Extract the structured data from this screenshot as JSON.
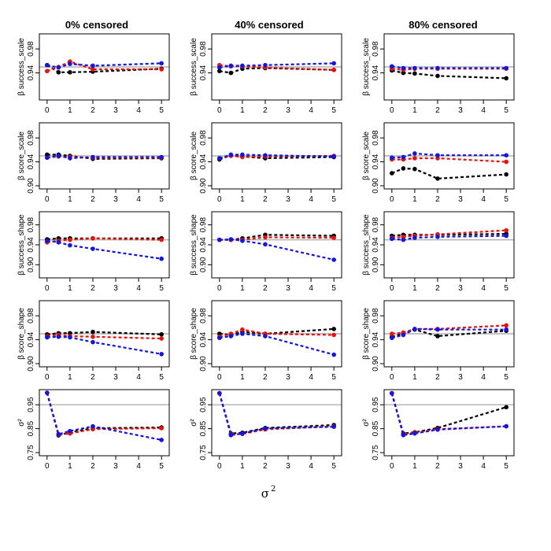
{
  "chart_data": {
    "type": "line",
    "layout": "4x3 panel grid plus bottom row",
    "column_titles": [
      "0% censored",
      "40% censored",
      "80% censored"
    ],
    "row_labels": [
      "β success_scale",
      "β score_scale",
      "β success_shape",
      "β score_shape",
      "σ²"
    ],
    "xlabel": "σ",
    "xlabel_sup": "2",
    "x": [
      0,
      0.5,
      1,
      2,
      5
    ],
    "xlim": [
      -0.2,
      5.2
    ],
    "xticks": [
      0,
      1,
      2,
      3,
      4,
      5
    ],
    "reference_line": 0.95,
    "series_colors": {
      "black": "#000000",
      "red": "#e8120c",
      "blue": "#1515e0",
      "reference": "#b0b0b0"
    },
    "rows": [
      {
        "label": "β success_scale",
        "ylim": [
          0.9,
          1.0
        ],
        "yticks": [
          0.94,
          0.98
        ],
        "yticklabels": [
          "0.94",
          "0.98"
        ],
        "panels": [
          {
            "title": "0% censored",
            "series": [
              {
                "name": "black",
                "values": [
                  0.953,
                  0.941,
                  0.941,
                  0.942,
                  0.947
                ]
              },
              {
                "name": "red",
                "values": [
                  0.943,
                  0.95,
                  0.959,
                  0.946,
                  0.946
                ]
              },
              {
                "name": "blue",
                "values": [
                  0.953,
                  0.949,
                  0.955,
                  0.952,
                  0.956
                ]
              }
            ]
          },
          {
            "title": "40% censored",
            "series": [
              {
                "name": "black",
                "values": [
                  0.943,
                  0.94,
                  0.947,
                  0.948,
                  0.945
                ]
              },
              {
                "name": "red",
                "values": [
                  0.953,
                  0.951,
                  0.951,
                  0.949,
                  0.945
                ]
              },
              {
                "name": "blue",
                "values": [
                  0.949,
                  0.952,
                  0.952,
                  0.953,
                  0.956
                ]
              }
            ]
          },
          {
            "title": "80% censored",
            "series": [
              {
                "name": "black",
                "values": [
                  0.944,
                  0.94,
                  0.939,
                  0.935,
                  0.931
                ]
              },
              {
                "name": "red",
                "values": [
                  0.947,
                  0.945,
                  0.947,
                  0.947,
                  0.947
                ]
              },
              {
                "name": "blue",
                "values": [
                  0.951,
                  0.948,
                  0.948,
                  0.948,
                  0.948
                ]
              }
            ]
          }
        ]
      },
      {
        "label": "β score_scale",
        "ylim": [
          0.9,
          1.0
        ],
        "yticks": [
          0.9,
          0.94,
          0.98
        ],
        "yticklabels": [
          "0.90",
          "0.94",
          "0.98"
        ],
        "panels": [
          {
            "title": "0% censored",
            "series": [
              {
                "name": "black",
                "values": [
                  0.952,
                  0.952,
                  0.95,
                  0.945,
                  0.946
                ]
              },
              {
                "name": "red",
                "values": [
                  0.947,
                  0.949,
                  0.948,
                  0.947,
                  0.947
                ]
              },
              {
                "name": "blue",
                "values": [
                  0.947,
                  0.95,
                  0.946,
                  0.948,
                  0.948
                ]
              }
            ]
          },
          {
            "title": "40% censored",
            "series": [
              {
                "name": "black",
                "values": [
                  0.944,
                  0.951,
                  0.949,
                  0.946,
                  0.948
                ]
              },
              {
                "name": "red",
                "values": [
                  0.946,
                  0.95,
                  0.948,
                  0.949,
                  0.95
                ]
              },
              {
                "name": "blue",
                "values": [
                  0.946,
                  0.952,
                  0.952,
                  0.951,
                  0.949
                ]
              }
            ]
          },
          {
            "title": "80% censored",
            "series": [
              {
                "name": "black",
                "values": [
                  0.921,
                  0.929,
                  0.928,
                  0.912,
                  0.919
                ]
              },
              {
                "name": "red",
                "values": [
                  0.944,
                  0.944,
                  0.946,
                  0.946,
                  0.94
                ]
              },
              {
                "name": "blue",
                "values": [
                  0.947,
                  0.948,
                  0.954,
                  0.951,
                  0.951
                ]
              }
            ]
          }
        ]
      },
      {
        "label": "β success_shape",
        "ylim": [
          0.88,
          1.0
        ],
        "yticks": [
          0.9,
          0.94,
          0.98
        ],
        "yticklabels": [
          "0.90",
          "0.94",
          "0.98"
        ],
        "panels": [
          {
            "title": "0% censored",
            "series": [
              {
                "name": "black",
                "values": [
                  0.951,
                  0.953,
                  0.953,
                  0.953,
                  0.953
                ]
              },
              {
                "name": "red",
                "values": [
                  0.945,
                  0.948,
                  0.95,
                  0.953,
                  0.95
                ]
              },
              {
                "name": "blue",
                "values": [
                  0.948,
                  0.945,
                  0.939,
                  0.932,
                  0.912
                ]
              }
            ]
          },
          {
            "title": "40% censored",
            "series": [
              {
                "name": "black",
                "values": [
                  0.95,
                  0.95,
                  0.953,
                  0.96,
                  0.958
                ]
              },
              {
                "name": "red",
                "values": [
                  0.95,
                  0.95,
                  0.95,
                  0.955,
                  0.954
                ]
              },
              {
                "name": "blue",
                "values": [
                  0.95,
                  0.951,
                  0.948,
                  0.941,
                  0.91
                ]
              }
            ]
          },
          {
            "title": "80% censored",
            "series": [
              {
                "name": "black",
                "values": [
                  0.958,
                  0.96,
                  0.96,
                  0.96,
                  0.962
                ]
              },
              {
                "name": "red",
                "values": [
                  0.954,
                  0.956,
                  0.958,
                  0.961,
                  0.969
                ]
              },
              {
                "name": "blue",
                "values": [
                  0.952,
                  0.95,
                  0.954,
                  0.956,
                  0.958
                ]
              }
            ]
          }
        ]
      },
      {
        "label": "β score_shape",
        "ylim": [
          0.9,
          1.0
        ],
        "yticks": [
          0.9,
          0.94,
          0.98
        ],
        "yticklabels": [
          "0.90",
          "0.94",
          "0.98"
        ],
        "panels": [
          {
            "title": "0% censored",
            "series": [
              {
                "name": "black",
                "values": [
                  0.949,
                  0.951,
                  0.951,
                  0.953,
                  0.949
                ]
              },
              {
                "name": "red",
                "values": [
                  0.946,
                  0.948,
                  0.946,
                  0.945,
                  0.942
                ]
              },
              {
                "name": "blue",
                "values": [
                  0.944,
                  0.945,
                  0.944,
                  0.936,
                  0.916
                ]
              }
            ]
          },
          {
            "title": "40% censored",
            "series": [
              {
                "name": "black",
                "values": [
                  0.95,
                  0.948,
                  0.953,
                  0.95,
                  0.958
                ]
              },
              {
                "name": "red",
                "values": [
                  0.945,
                  0.95,
                  0.957,
                  0.95,
                  0.948
                ]
              },
              {
                "name": "blue",
                "values": [
                  0.943,
                  0.946,
                  0.95,
                  0.946,
                  0.915
                ]
              }
            ]
          },
          {
            "title": "80% censored",
            "series": [
              {
                "name": "black",
                "values": [
                  0.945,
                  0.95,
                  0.957,
                  0.946,
                  0.955
                ]
              },
              {
                "name": "red",
                "values": [
                  0.95,
                  0.952,
                  0.958,
                  0.958,
                  0.964
                ]
              },
              {
                "name": "blue",
                "values": [
                  0.943,
                  0.948,
                  0.958,
                  0.957,
                  0.957
                ]
              }
            ]
          }
        ]
      },
      {
        "label": "σ²",
        "ylim": [
          0.75,
          1.0
        ],
        "yticks": [
          0.75,
          0.85,
          0.95
        ],
        "yticklabels": [
          "0.75",
          "0.85",
          "0.95"
        ],
        "panels": [
          {
            "title": "0% censored",
            "series": [
              {
                "name": "black",
                "values": [
                  1.0,
                  0.822,
                  0.835,
                  0.852,
                  0.855
                ]
              },
              {
                "name": "red",
                "values": [
                  1.0,
                  0.825,
                  0.83,
                  0.848,
                  0.852
                ]
              },
              {
                "name": "blue",
                "values": [
                  1.0,
                  0.827,
                  0.84,
                  0.86,
                  0.803
                ]
              }
            ]
          },
          {
            "title": "40% censored",
            "series": [
              {
                "name": "black",
                "values": [
                  0.998,
                  0.83,
                  0.833,
                  0.853,
                  0.865
                ]
              },
              {
                "name": "red",
                "values": [
                  0.998,
                  0.826,
                  0.828,
                  0.847,
                  0.86
                ]
              },
              {
                "name": "blue",
                "values": [
                  0.998,
                  0.823,
                  0.83,
                  0.851,
                  0.858
                ]
              }
            ]
          },
          {
            "title": "80% censored",
            "series": [
              {
                "name": "black",
                "values": [
                  0.998,
                  0.83,
                  0.835,
                  0.853,
                  0.94
                ]
              },
              {
                "name": "red",
                "values": [
                  0.998,
                  0.826,
                  0.833,
                  0.848,
                  0.86
                ]
              },
              {
                "name": "blue",
                "values": [
                  0.998,
                  0.823,
                  0.83,
                  0.846,
                  0.86
                ]
              }
            ]
          }
        ]
      }
    ]
  }
}
